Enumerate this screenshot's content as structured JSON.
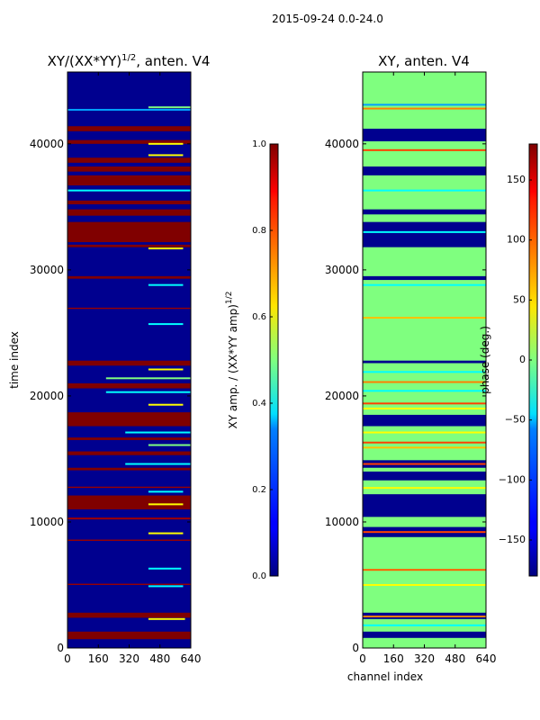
{
  "figure": {
    "suptitle": "2015-09-24 0.0-24.0"
  },
  "chart_data": [
    {
      "type": "heatmap",
      "title_prefix": "XY/(XX*YY)",
      "title_exp": "1/2",
      "title_suffix": ", anten. V4",
      "xlabel": "",
      "ylabel": "time index",
      "x_ticks": [
        "0",
        "160",
        "320",
        "480",
        "640"
      ],
      "y_ticks": [
        "0",
        "10000",
        "20000",
        "30000",
        "40000"
      ],
      "xlim": [
        0,
        640
      ],
      "ylim": [
        0,
        45700
      ],
      "colormap": "jet",
      "background_color": "#00008f",
      "bands": [
        {
          "y0": 700,
          "y1": 1300,
          "color": "#800000"
        },
        {
          "y0": 2400,
          "y1": 2800,
          "color": "#800000"
        },
        {
          "y0": 5000,
          "y1": 5100,
          "color": "#9a0000"
        },
        {
          "y0": 8500,
          "y1": 8600,
          "color": "#9a0000"
        },
        {
          "y0": 10200,
          "y1": 10350,
          "color": "#9a0000"
        },
        {
          "y0": 11000,
          "y1": 12100,
          "color": "#800000"
        },
        {
          "y0": 12700,
          "y1": 12800,
          "color": "#9a0000"
        },
        {
          "y0": 14100,
          "y1": 14300,
          "color": "#800000"
        },
        {
          "y0": 15300,
          "y1": 15600,
          "color": "#800000"
        },
        {
          "y0": 16500,
          "y1": 16700,
          "color": "#800000"
        },
        {
          "y0": 17600,
          "y1": 18700,
          "color": "#800000"
        },
        {
          "y0": 20600,
          "y1": 21000,
          "color": "#800000"
        },
        {
          "y0": 22400,
          "y1": 22800,
          "color": "#800000"
        },
        {
          "y0": 26900,
          "y1": 27000,
          "color": "#9a0000"
        },
        {
          "y0": 29300,
          "y1": 29500,
          "color": "#800000"
        },
        {
          "y0": 31800,
          "y1": 32000,
          "color": "#800000"
        },
        {
          "y0": 32200,
          "y1": 33800,
          "color": "#800000"
        },
        {
          "y0": 34300,
          "y1": 34800,
          "color": "#800000"
        },
        {
          "y0": 35200,
          "y1": 35500,
          "color": "#800000"
        },
        {
          "y0": 36700,
          "y1": 37500,
          "color": "#800000"
        },
        {
          "y0": 37800,
          "y1": 38200,
          "color": "#800000"
        },
        {
          "y0": 38500,
          "y1": 38900,
          "color": "#800000"
        },
        {
          "y0": 40000,
          "y1": 40300,
          "color": "#800000"
        },
        {
          "y0": 41000,
          "y1": 41400,
          "color": "#800000"
        }
      ],
      "speckle_rows": [
        {
          "y": 2300,
          "x0": 420,
          "x1": 610,
          "color": "#ffff00"
        },
        {
          "y": 4900,
          "x0": 420,
          "x1": 600,
          "color": "#00ffff"
        },
        {
          "y": 6300,
          "x0": 420,
          "x1": 590,
          "color": "#00ffff"
        },
        {
          "y": 9100,
          "x0": 420,
          "x1": 600,
          "color": "#ffff00"
        },
        {
          "y": 11400,
          "x0": 420,
          "x1": 600,
          "color": "#ffff00"
        },
        {
          "y": 12400,
          "x0": 420,
          "x1": 600,
          "color": "#00ffff"
        },
        {
          "y": 14600,
          "x0": 300,
          "x1": 640,
          "color": "#00ffff"
        },
        {
          "y": 16100,
          "x0": 420,
          "x1": 640,
          "color": "#80ff80"
        },
        {
          "y": 17100,
          "x0": 300,
          "x1": 640,
          "color": "#00ffff"
        },
        {
          "y": 19300,
          "x0": 420,
          "x1": 600,
          "color": "#ffff00"
        },
        {
          "y": 20300,
          "x0": 200,
          "x1": 640,
          "color": "#00ffff"
        },
        {
          "y": 21400,
          "x0": 200,
          "x1": 640,
          "color": "#80ff80"
        },
        {
          "y": 22100,
          "x0": 420,
          "x1": 600,
          "color": "#ffff00"
        },
        {
          "y": 25700,
          "x0": 420,
          "x1": 600,
          "color": "#00ffff"
        },
        {
          "y": 28800,
          "x0": 420,
          "x1": 600,
          "color": "#00ffff"
        },
        {
          "y": 31700,
          "x0": 420,
          "x1": 600,
          "color": "#ffff00"
        },
        {
          "y": 36300,
          "x0": 0,
          "x1": 640,
          "color": "#00ffff"
        },
        {
          "y": 39100,
          "x0": 420,
          "x1": 600,
          "color": "#ffff00"
        },
        {
          "y": 40000,
          "x0": 420,
          "x1": 600,
          "color": "#ffff00"
        },
        {
          "y": 42700,
          "x0": 0,
          "x1": 640,
          "color": "#00a0ff"
        },
        {
          "y": 42900,
          "x0": 420,
          "x1": 640,
          "color": "#80ff80"
        }
      ],
      "colorbar": {
        "label_main": "XY amp. / (XX*YY amp)",
        "label_exp": "1/2",
        "range": [
          0.0,
          1.0
        ],
        "ticks": [
          "0.0",
          "0.2",
          "0.4",
          "0.6",
          "0.8",
          "1.0"
        ]
      }
    },
    {
      "type": "heatmap",
      "title": "XY, anten. V4",
      "xlabel": "channel index",
      "ylabel": "",
      "x_ticks": [
        "0",
        "160",
        "320",
        "480",
        "640"
      ],
      "y_ticks": [
        "0",
        "10000",
        "20000",
        "30000",
        "40000"
      ],
      "xlim": [
        0,
        640
      ],
      "ylim": [
        0,
        45700
      ],
      "colormap": "jet",
      "background_color": "#7fff7f",
      "bands": [
        {
          "y0": 800,
          "y1": 1300,
          "color": "#00008f"
        },
        {
          "y0": 2300,
          "y1": 2800,
          "color": "#00008f"
        },
        {
          "y0": 8800,
          "y1": 9600,
          "color": "#00008f"
        },
        {
          "y0": 10400,
          "y1": 12200,
          "color": "#00008f"
        },
        {
          "y0": 13300,
          "y1": 14000,
          "color": "#00008f"
        },
        {
          "y0": 14300,
          "y1": 14900,
          "color": "#00008f"
        },
        {
          "y0": 17600,
          "y1": 18500,
          "color": "#00008f"
        },
        {
          "y0": 22600,
          "y1": 22800,
          "color": "#00008f"
        },
        {
          "y0": 29200,
          "y1": 29500,
          "color": "#00008f"
        },
        {
          "y0": 31800,
          "y1": 33800,
          "color": "#00008f"
        },
        {
          "y0": 34400,
          "y1": 34800,
          "color": "#00008f"
        },
        {
          "y0": 37500,
          "y1": 38200,
          "color": "#00008f"
        },
        {
          "y0": 40200,
          "y1": 41200,
          "color": "#00008f"
        }
      ],
      "speckle_rows": [
        {
          "y": 1800,
          "x0": 0,
          "x1": 640,
          "color": "#00ffff"
        },
        {
          "y": 2500,
          "x0": 0,
          "x1": 640,
          "color": "#ff8000"
        },
        {
          "y": 5000,
          "x0": 0,
          "x1": 640,
          "color": "#ffff00"
        },
        {
          "y": 6200,
          "x0": 0,
          "x1": 640,
          "color": "#ff6000"
        },
        {
          "y": 9200,
          "x0": 0,
          "x1": 640,
          "color": "#ff4000"
        },
        {
          "y": 12700,
          "x0": 0,
          "x1": 640,
          "color": "#ffff00"
        },
        {
          "y": 14600,
          "x0": 0,
          "x1": 640,
          "color": "#ff4000"
        },
        {
          "y": 15900,
          "x0": 0,
          "x1": 640,
          "color": "#ffc000"
        },
        {
          "y": 16300,
          "x0": 0,
          "x1": 640,
          "color": "#ff4000"
        },
        {
          "y": 17100,
          "x0": 0,
          "x1": 640,
          "color": "#ffff00"
        },
        {
          "y": 19000,
          "x0": 0,
          "x1": 640,
          "color": "#ffff00"
        },
        {
          "y": 19400,
          "x0": 0,
          "x1": 640,
          "color": "#ff4000"
        },
        {
          "y": 20400,
          "x0": 0,
          "x1": 640,
          "color": "#00ffff"
        },
        {
          "y": 21100,
          "x0": 0,
          "x1": 640,
          "color": "#ff8000"
        },
        {
          "y": 21900,
          "x0": 0,
          "x1": 640,
          "color": "#00ffff"
        },
        {
          "y": 26200,
          "x0": 0,
          "x1": 640,
          "color": "#ffc000"
        },
        {
          "y": 28800,
          "x0": 0,
          "x1": 640,
          "color": "#00ffff"
        },
        {
          "y": 33000,
          "x0": 0,
          "x1": 640,
          "color": "#00ffff"
        },
        {
          "y": 36300,
          "x0": 0,
          "x1": 640,
          "color": "#00ffff"
        },
        {
          "y": 39500,
          "x0": 0,
          "x1": 640,
          "color": "#ff4000"
        },
        {
          "y": 42800,
          "x0": 0,
          "x1": 640,
          "color": "#ff8000"
        },
        {
          "y": 43100,
          "x0": 0,
          "x1": 640,
          "color": "#00a0ff"
        }
      ],
      "colorbar": {
        "label": "phase (deg.)",
        "range": [
          -180,
          180
        ],
        "ticks": [
          "150",
          "100",
          "50",
          "0",
          "−50",
          "−100",
          "−150"
        ],
        "tick_values": [
          150,
          100,
          50,
          0,
          -50,
          -100,
          -150
        ]
      }
    }
  ]
}
